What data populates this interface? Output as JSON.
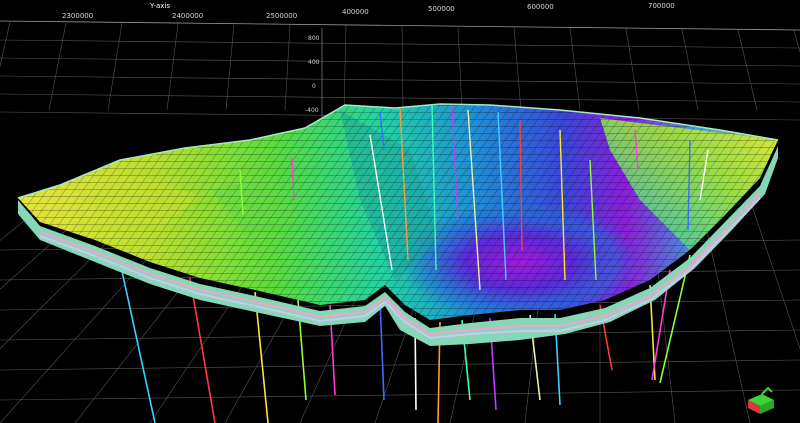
{
  "viewer": {
    "y_axis_title": "Y-axis",
    "top_axis_ticks": [
      "2300000",
      "2400000",
      "2500000",
      "400000",
      "500000",
      "600000",
      "700000"
    ],
    "z_axis_ticks": [
      "800",
      "400",
      "0",
      "-400"
    ],
    "orientation_icon": "axis-cube-icon",
    "background_color": "#000000",
    "colormap": [
      "#e9e341",
      "#b8e02a",
      "#52e23c",
      "#1fd6a8",
      "#1f8fd8",
      "#3b3ed8",
      "#8d1ed8",
      "#c21ad0"
    ],
    "well_colors": [
      "#3bd0ff",
      "#ff3b3b",
      "#ffe23b",
      "#8cff3b",
      "#ff3bd8",
      "#3b6bff",
      "#ffffff",
      "#ff9a3b",
      "#3bffb0",
      "#c23bff",
      "#f0f0a0"
    ]
  }
}
